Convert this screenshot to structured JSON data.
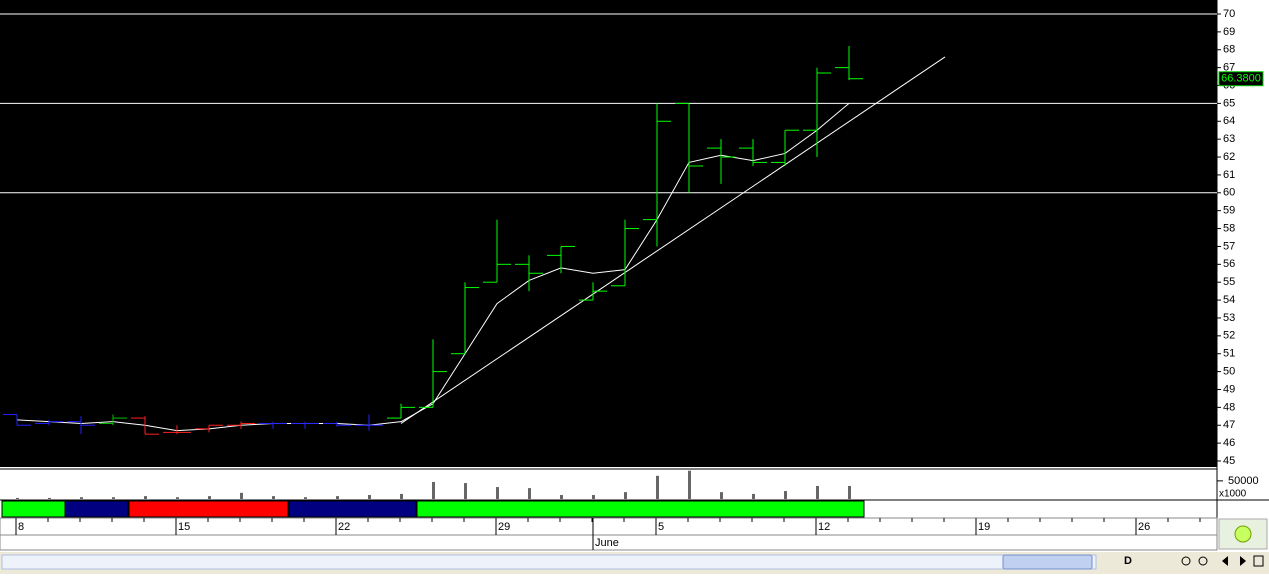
{
  "chart_data": {
    "type": "ohlc",
    "ylim": [
      45,
      70
    ],
    "yticks": [
      45,
      46,
      47,
      48,
      49,
      50,
      51,
      52,
      53,
      54,
      55,
      56,
      57,
      58,
      59,
      60,
      61,
      62,
      63,
      64,
      65,
      66,
      67,
      68,
      69,
      70
    ],
    "open": [
      47.6,
      47.1,
      47.2,
      47.1,
      47.4,
      46.6,
      46.8,
      47.0,
      47.1,
      47.1,
      47.1,
      47.0,
      47.4,
      48.0,
      51.0,
      55.0,
      56.0,
      56.5,
      54.0,
      54.8,
      58.5,
      65.0,
      62.5,
      62.5,
      61.7,
      63.5,
      67.0
    ],
    "high": [
      47.6,
      47.3,
      47.5,
      47.6,
      47.5,
      47.0,
      47.0,
      47.2,
      47.2,
      47.2,
      47.2,
      47.6,
      48.2,
      51.8,
      55.0,
      58.5,
      56.5,
      57.0,
      55.0,
      58.5,
      65.0,
      65.0,
      63.0,
      63.0,
      63.5,
      67.0,
      68.2
    ],
    "low": [
      47.0,
      47.0,
      46.5,
      47.0,
      46.5,
      46.5,
      46.6,
      46.8,
      46.8,
      46.8,
      46.9,
      46.7,
      47.4,
      48.0,
      51.0,
      55.0,
      54.5,
      55.5,
      54.0,
      54.8,
      57.0,
      60.0,
      60.5,
      61.5,
      61.5,
      62.0,
      66.3
    ],
    "close": [
      47.0,
      47.2,
      47.0,
      47.4,
      46.5,
      46.6,
      47.0,
      47.1,
      47.1,
      47.1,
      47.0,
      47.0,
      48.0,
      50.0,
      54.7,
      56.0,
      55.5,
      57.0,
      54.5,
      58.0,
      64.0,
      61.5,
      62.0,
      61.7,
      63.5,
      66.7,
      66.38
    ],
    "close_label": "66.3800",
    "bar_colors": [
      "#2020ff",
      "#2020ff",
      "#2020ff",
      "#00c000",
      "#ff2020",
      "#ff2020",
      "#ff2020",
      "#ff2020",
      "#2020ff",
      "#2020ff",
      "#2020ff",
      "#2020ff",
      "#00ff00",
      "#00ff00",
      "#00ff00",
      "#00ff00",
      "#00ff00",
      "#00ff00",
      "#00ff00",
      "#00ff00",
      "#00ff00",
      "#00ff00",
      "#00ff00",
      "#00ff00",
      "#00ff00",
      "#00ff00",
      "#00ff00"
    ],
    "moving_average": [
      47.3,
      47.2,
      47.1,
      47.2,
      47.0,
      46.7,
      46.8,
      47.0,
      47.1,
      47.1,
      47.1,
      47.0,
      47.2,
      48.2,
      51.0,
      53.8,
      55.1,
      55.8,
      55.5,
      55.7,
      58.5,
      61.7,
      62.1,
      61.8,
      62.2,
      63.5,
      65.0
    ],
    "trendline": {
      "x": [
        12,
        29
      ],
      "y": [
        47.1,
        67.6
      ]
    },
    "hlines": [
      70,
      65,
      60
    ],
    "volume": {
      "values": [
        3000,
        3000,
        5000,
        5000,
        8000,
        5000,
        8000,
        17000,
        8000,
        5000,
        8000,
        11000,
        14000,
        47000,
        44000,
        33000,
        30000,
        11000,
        11000,
        19000,
        64000,
        78000,
        19000,
        14000,
        22000,
        36000,
        36000
      ],
      "ylim": [
        0,
        80000
      ],
      "yticks": [
        50000
      ],
      "unit_label": "x1000"
    },
    "band": [
      {
        "start": 0,
        "end": 1,
        "color": "#00ff00"
      },
      {
        "start": 2,
        "end": 3,
        "color": "#000080"
      },
      {
        "start": 4,
        "end": 8,
        "color": "#ff0000"
      },
      {
        "start": 9,
        "end": 12,
        "color": "#000080"
      },
      {
        "start": 13,
        "end": 26,
        "color": "#00ff00"
      }
    ],
    "date_labels": [
      {
        "index": 0,
        "label": "8"
      },
      {
        "index": 5,
        "label": "15"
      },
      {
        "index": 10,
        "label": "22"
      },
      {
        "index": 15,
        "label": "29"
      },
      {
        "index": 20,
        "label": "5"
      },
      {
        "index": 25,
        "label": "12"
      },
      {
        "index": 30,
        "label": "19"
      },
      {
        "index": 35,
        "label": "26"
      }
    ],
    "month_label": {
      "index": 18,
      "label": "June"
    },
    "toolbar_label": "D"
  }
}
